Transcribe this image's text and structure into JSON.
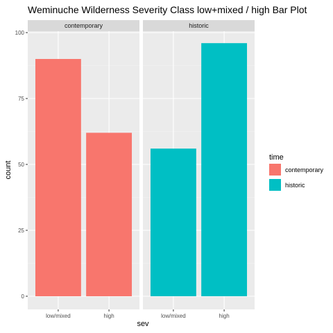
{
  "chart_data": {
    "type": "bar",
    "title": "Weminuche Wilderness Severity Class low+mixed / high Bar Plot",
    "xlabel": "sev",
    "ylabel": "count",
    "ylim": [
      0,
      100
    ],
    "yticks": [
      0,
      25,
      50,
      75,
      100
    ],
    "grid": true,
    "legend": {
      "title": "time",
      "placement": "right",
      "entries": [
        {
          "label": "contemporary",
          "color": "#F8766D"
        },
        {
          "label": "historic",
          "color": "#00BFC4"
        }
      ]
    },
    "facets": [
      {
        "label": "contemporary",
        "categories": [
          "low/mixed",
          "high"
        ],
        "values": [
          90,
          62
        ],
        "color": "#F8766D"
      },
      {
        "label": "historic",
        "categories": [
          "low/mixed",
          "high"
        ],
        "values": [
          56,
          96
        ],
        "color": "#00BFC4"
      }
    ]
  }
}
